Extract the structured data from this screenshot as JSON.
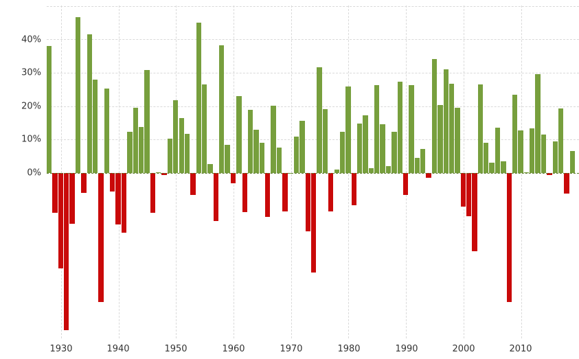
{
  "chart_data": {
    "type": "bar",
    "title": "",
    "xlabel": "",
    "ylabel": "",
    "ylim": [
      -50,
      50
    ],
    "grid": true,
    "legend": null,
    "y_ticks": [
      "0%",
      "10%",
      "20%",
      "30%",
      "40%"
    ],
    "y_tick_values": [
      0,
      10,
      20,
      30,
      40
    ],
    "x_ticks": [
      "1930",
      "1940",
      "1950",
      "1960",
      "1970",
      "1980",
      "1990",
      "2000",
      "2010"
    ],
    "x_tick_values": [
      1930,
      1940,
      1950,
      1960,
      1970,
      1980,
      1990,
      2000,
      2010
    ],
    "positive_color": "#779f3d",
    "negative_color": "#c90909",
    "categories": [
      1928,
      1929,
      1930,
      1931,
      1932,
      1933,
      1934,
      1935,
      1936,
      1937,
      1938,
      1939,
      1940,
      1941,
      1942,
      1943,
      1944,
      1945,
      1946,
      1947,
      1948,
      1949,
      1950,
      1951,
      1952,
      1953,
      1954,
      1955,
      1956,
      1957,
      1958,
      1959,
      1960,
      1961,
      1962,
      1963,
      1964,
      1965,
      1966,
      1967,
      1968,
      1969,
      1970,
      1971,
      1972,
      1973,
      1974,
      1975,
      1976,
      1977,
      1978,
      1979,
      1980,
      1981,
      1982,
      1983,
      1984,
      1985,
      1986,
      1987,
      1988,
      1989,
      1990,
      1991,
      1992,
      1993,
      1994,
      1995,
      1996,
      1997,
      1998,
      1999,
      2000,
      2001,
      2002,
      2003,
      2004,
      2005,
      2006,
      2007,
      2008,
      2009,
      2010,
      2011,
      2012,
      2013,
      2014,
      2015,
      2016,
      2017,
      2018,
      2019
    ],
    "values": [
      37.9,
      -11.9,
      -28.5,
      -47.1,
      -15.2,
      46.6,
      -5.9,
      41.4,
      27.9,
      -38.6,
      25.2,
      -5.5,
      -15.3,
      -17.9,
      12.4,
      19.5,
      13.8,
      30.7,
      -11.9,
      0.0,
      -0.7,
      10.3,
      21.8,
      16.5,
      11.8,
      -6.6,
      45.0,
      26.4,
      2.6,
      -14.3,
      38.1,
      8.5,
      -3.0,
      23.1,
      -11.8,
      18.9,
      13.0,
      9.1,
      -13.1,
      20.1,
      7.7,
      -11.4,
      0.1,
      10.8,
      15.6,
      -17.4,
      -29.7,
      31.6,
      19.2,
      -11.5,
      1.1,
      12.3,
      25.8,
      -9.7,
      14.8,
      17.3,
      1.4,
      26.3,
      14.6,
      2.0,
      12.4,
      27.3,
      -6.6,
      26.3,
      4.5,
      7.1,
      -1.5,
      34.1,
      20.3,
      31.0,
      26.7,
      19.5,
      -10.1,
      -13.0,
      -23.4,
      26.4,
      9.0,
      3.0,
      13.6,
      3.5,
      -38.5,
      23.5,
      12.8,
      0.0,
      13.4,
      29.6,
      11.4,
      -0.7,
      9.5,
      19.4,
      -6.2,
      6.5
    ]
  }
}
